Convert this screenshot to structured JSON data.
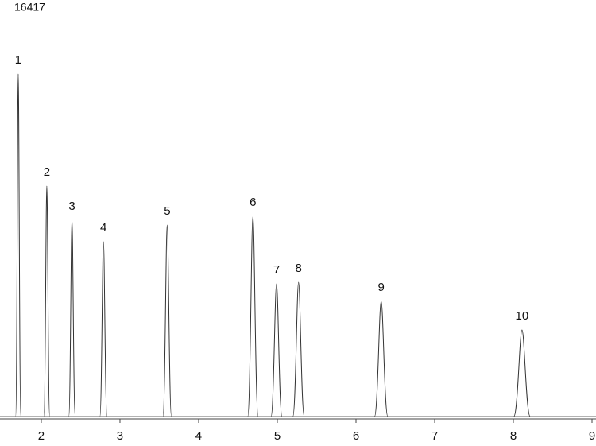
{
  "chart_data": {
    "type": "line",
    "color": "#333333",
    "x": [
      1.707,
      2.07,
      2.39,
      2.79,
      3.6,
      4.69,
      4.99,
      5.27,
      6.32,
      8.11
    ],
    "values": [
      13766,
      9263,
      7889,
      7027,
      7698,
      8049,
      5334,
      5398,
      4631,
      3481
    ],
    "peak_labels": [
      "1",
      "2",
      "3",
      "4",
      "5",
      "6",
      "7",
      "8",
      "9",
      "10"
    ],
    "xlim": [
      1.475,
      9
    ],
    "xticks": [
      2,
      3,
      4,
      5,
      6,
      7,
      8,
      9
    ],
    "ylim": [
      0,
      16417
    ],
    "yticks": [
      16417
    ]
  }
}
